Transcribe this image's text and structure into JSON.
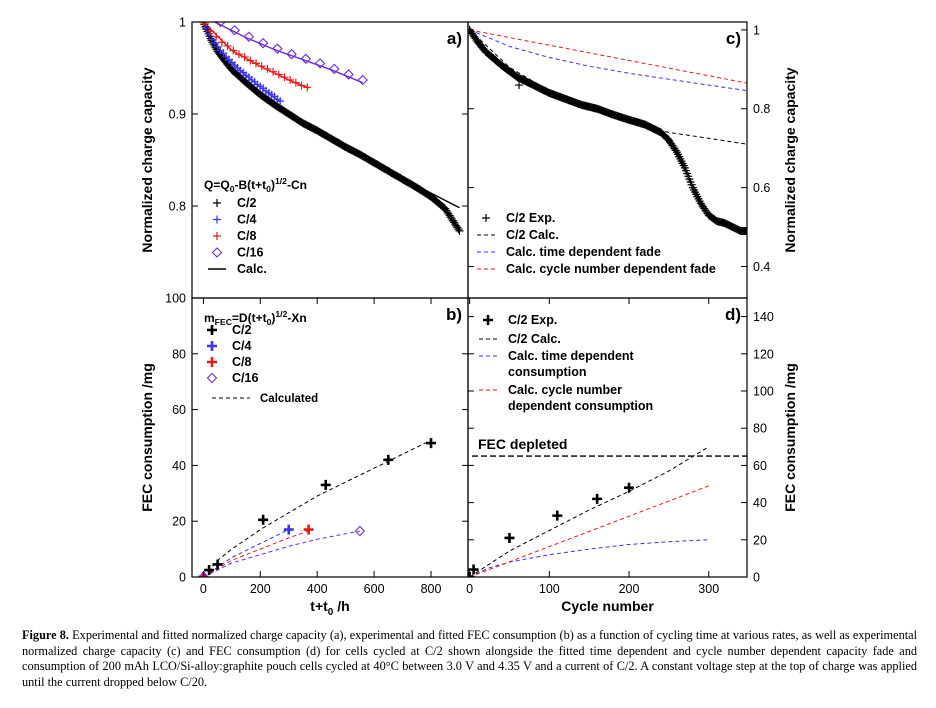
{
  "colors": {
    "black": "#000000",
    "blue": "#3a35e8",
    "red": "#e51a1a",
    "purple": "#6b2fd6"
  },
  "caption": {
    "label": "Figure 8.",
    "text": "Experimental and fitted normalized charge capacity (a), experimental and fitted FEC consumption (b) as a function of cycling time at various rates, as well as experimental normalized charge capacity (c) and FEC consumption (d) for cells cycled at C/2 shown alongside the fitted time dependent and cycle number dependent capacity fade and consumption of 200 mAh LCO/Si-alloy:graphite pouch cells cycled at 40°C between 3.0 V and 4.35 V and a current of C/2. A constant voltage step at the top of charge was applied until the current dropped below C/20."
  },
  "chart_data": [
    {
      "panel": "a)",
      "type": "scatter",
      "ylabel": "Normalized charge capacity",
      "xlim": [
        -40,
        930
      ],
      "ylim": [
        0.7,
        1.0
      ],
      "yticks": [
        0.8,
        0.9,
        1
      ],
      "ytick_labels": [
        "0.8",
        "0.9",
        "1"
      ],
      "equation": {
        "pre": "Q=Q",
        "s1": "0",
        "mid": "-B(t+t",
        "s2": "0",
        "mid2": ")",
        "sup": "1/2",
        "post": "-Cn"
      },
      "legend": [
        "C/2",
        "C/4",
        "C/8",
        "C/16",
        "Calc."
      ],
      "series": [
        {
          "name": "C/2",
          "color": "black",
          "marker": "plus",
          "dense": true,
          "x": [
            0,
            25,
            50,
            100,
            150,
            200,
            250,
            300,
            350,
            400,
            450,
            500,
            550,
            600,
            650,
            700,
            750,
            800,
            850,
            900
          ],
          "y": [
            1.0,
            0.982,
            0.968,
            0.948,
            0.934,
            0.921,
            0.91,
            0.9,
            0.89,
            0.882,
            0.873,
            0.864,
            0.856,
            0.847,
            0.838,
            0.829,
            0.82,
            0.81,
            0.797,
            0.773
          ]
        },
        {
          "name": "C/4",
          "color": "blue",
          "marker": "plus",
          "x": [
            0,
            10,
            20,
            30,
            40,
            50,
            60,
            70,
            80,
            90,
            100,
            110,
            120,
            130,
            140,
            150,
            160,
            170,
            180,
            190,
            200,
            210,
            220,
            230,
            240,
            250,
            260,
            270
          ],
          "y": [
            1.0,
            0.993,
            0.987,
            0.981,
            0.977,
            0.973,
            0.969,
            0.966,
            0.962,
            0.959,
            0.956,
            0.953,
            0.95,
            0.947,
            0.945,
            0.942,
            0.94,
            0.937,
            0.935,
            0.932,
            0.93,
            0.928,
            0.925,
            0.923,
            0.921,
            0.919,
            0.916,
            0.914
          ]
        },
        {
          "name": "C/8",
          "color": "red",
          "marker": "plus",
          "x": [
            5,
            25,
            45,
            65,
            85,
            105,
            125,
            145,
            165,
            185,
            205,
            225,
            245,
            265,
            285,
            305,
            325,
            345,
            365
          ],
          "y": [
            0.998,
            0.99,
            0.984,
            0.978,
            0.974,
            0.969,
            0.965,
            0.962,
            0.958,
            0.955,
            0.952,
            0.949,
            0.946,
            0.943,
            0.94,
            0.937,
            0.934,
            0.931,
            0.929
          ]
        },
        {
          "name": "C/16",
          "color": "purple",
          "marker": "diamond",
          "x": [
            60,
            110,
            160,
            210,
            260,
            310,
            360,
            410,
            460,
            510,
            560
          ],
          "y": [
            1.0,
            0.991,
            0.984,
            0.977,
            0.971,
            0.965,
            0.96,
            0.955,
            0.949,
            0.943,
            0.937
          ]
        }
      ],
      "fit_lines": [
        {
          "name": "Calc.",
          "color": "black",
          "dash": false,
          "x": [
            0,
            50,
            100,
            200,
            300,
            400,
            500,
            600,
            700,
            800,
            900
          ],
          "y": [
            1.0,
            0.968,
            0.949,
            0.92,
            0.898,
            0.88,
            0.862,
            0.846,
            0.83,
            0.814,
            0.798
          ]
        },
        {
          "name": "C/4 Calc.",
          "color": "blue",
          "dash": false,
          "x": [
            0,
            50,
            100,
            150,
            200,
            270
          ],
          "y": [
            1.0,
            0.972,
            0.956,
            0.942,
            0.929,
            0.913
          ]
        },
        {
          "name": "C/8 Calc.",
          "color": "red",
          "dash": false,
          "x": [
            0,
            100,
            200,
            300,
            370
          ],
          "y": [
            1.0,
            0.969,
            0.952,
            0.937,
            0.928
          ]
        },
        {
          "name": "C/16 Calc.",
          "color": "purple",
          "dash": false,
          "x": [
            40,
            150,
            250,
            350,
            450,
            560
          ],
          "y": [
            1.0,
            0.983,
            0.97,
            0.959,
            0.948,
            0.934
          ]
        }
      ]
    },
    {
      "panel": "b)",
      "type": "scatter",
      "xlabel": {
        "pre": "t+t",
        "sub": "0",
        "post": " /h"
      },
      "ylabel": "FEC consumption /mg",
      "xlim": [
        -40,
        930
      ],
      "ylim": [
        0,
        100
      ],
      "xticks": [
        0,
        200,
        400,
        600,
        800
      ],
      "xtick_labels": [
        "0",
        "200",
        "400",
        "600",
        "800"
      ],
      "yticks": [
        0,
        20,
        40,
        60,
        80,
        100
      ],
      "ytick_labels": [
        "0",
        "20",
        "40",
        "60",
        "80",
        "100"
      ],
      "equation": {
        "pre": "m",
        "s1": "FEC",
        "mid": "=D(t+t",
        "s2": "0",
        "mid2": ")",
        "sup": "1/2",
        "post": "-Xn"
      },
      "legend": [
        "C/2",
        "C/4",
        "C/8",
        "C/16",
        "Calculated"
      ],
      "series": [
        {
          "name": "C/2",
          "color": "black",
          "marker": "bigplus",
          "x": [
            0,
            20,
            50,
            210,
            430,
            650,
            800
          ],
          "y": [
            0,
            2.5,
            4.5,
            20.5,
            33,
            42,
            48
          ]
        },
        {
          "name": "C/4",
          "color": "blue",
          "marker": "bigplus",
          "x": [
            0,
            300
          ],
          "y": [
            0,
            17
          ]
        },
        {
          "name": "C/8",
          "color": "red",
          "marker": "bigplus",
          "x": [
            0,
            370
          ],
          "y": [
            0,
            17
          ]
        },
        {
          "name": "C/16",
          "color": "purple",
          "marker": "diamond",
          "x": [
            0,
            550
          ],
          "y": [
            0,
            16.5
          ]
        }
      ],
      "fit_lines": [
        {
          "name": "Calculated",
          "color": "black",
          "dash": true,
          "x": [
            0,
            50,
            100,
            200,
            300,
            400,
            500,
            600,
            700,
            800
          ],
          "y": [
            0,
            6,
            10,
            17,
            23,
            29,
            34,
            39,
            44,
            49
          ]
        },
        {
          "name": "C/4 Calculated",
          "color": "blue",
          "dash": true,
          "x": [
            0,
            100,
            200,
            300
          ],
          "y": [
            0,
            7,
            12,
            17
          ]
        },
        {
          "name": "C/8 Calculated",
          "color": "red",
          "dash": true,
          "x": [
            0,
            100,
            200,
            300,
            370
          ],
          "y": [
            0,
            6,
            10,
            14,
            16.5
          ]
        },
        {
          "name": "C/16 Calculated",
          "color": "purple",
          "dash": true,
          "x": [
            0,
            100,
            200,
            300,
            400,
            550
          ],
          "y": [
            0,
            5,
            8,
            11,
            13.5,
            16.5
          ]
        }
      ]
    },
    {
      "panel": "c)",
      "type": "line",
      "ylabel": "Normalized charge capacity",
      "xlim": [
        -2,
        348
      ],
      "ylim": [
        0.32,
        1.02
      ],
      "yticks": [
        0.4,
        0.6,
        0.8,
        1
      ],
      "ytick_labels": [
        "0.4",
        "0.6",
        "0.8",
        "1"
      ],
      "legend": [
        "C/2 Exp.",
        "C/2 Calc.",
        "Calc. time dependent fade",
        "Calc. cycle number dependent fade"
      ],
      "series": [
        {
          "name": "C/2 Exp.",
          "color": "black",
          "marker": "plus",
          "dense": true,
          "x": [
            0,
            10,
            20,
            40,
            60,
            80,
            100,
            120,
            140,
            160,
            180,
            200,
            220,
            240,
            250,
            260,
            270,
            280,
            290,
            300,
            310,
            320,
            330,
            340,
            348
          ],
          "y": [
            1.0,
            0.97,
            0.945,
            0.91,
            0.88,
            0.86,
            0.84,
            0.825,
            0.81,
            0.8,
            0.785,
            0.772,
            0.76,
            0.74,
            0.72,
            0.69,
            0.65,
            0.6,
            0.56,
            0.53,
            0.515,
            0.51,
            0.5,
            0.49,
            0.49
          ]
        },
        {
          "name": "C/2 Exp. outlier",
          "color": "black",
          "marker": "plus",
          "x": [
            62
          ],
          "y": [
            0.86
          ]
        }
      ],
      "fit_lines": [
        {
          "name": "C/2 Calc.",
          "color": "black",
          "dash": true,
          "x": [
            0,
            50,
            100,
            150,
            200,
            250,
            300,
            348
          ],
          "y": [
            1.0,
            0.905,
            0.845,
            0.8,
            0.765,
            0.74,
            0.725,
            0.71
          ]
        },
        {
          "name": "Calc. time dependent fade",
          "color": "blue",
          "dash": true,
          "x": [
            0,
            50,
            100,
            150,
            200,
            250,
            300,
            348
          ],
          "y": [
            1.0,
            0.958,
            0.93,
            0.908,
            0.89,
            0.875,
            0.86,
            0.846
          ]
        },
        {
          "name": "Calc. cycle number dependent fade",
          "color": "red",
          "dash": true,
          "x": [
            0,
            348
          ],
          "y": [
            1.0,
            0.865
          ]
        }
      ]
    },
    {
      "panel": "d)",
      "type": "line",
      "xlabel": "Cycle number",
      "ylabel": "FEC consumption /mg",
      "xlim": [
        -2,
        348
      ],
      "ylim": [
        0,
        150
      ],
      "xticks": [
        0,
        100,
        200,
        300
      ],
      "xtick_labels": [
        "0",
        "100",
        "200",
        "300"
      ],
      "yticks": [
        0,
        20,
        40,
        60,
        80,
        100,
        120,
        140
      ],
      "ytick_labels": [
        "0",
        "20",
        "40",
        "60",
        "80",
        "100",
        "120",
        "140"
      ],
      "annotation": "FEC depleted",
      "depleted_level": 65,
      "legend": [
        "C/2 Exp.",
        "C/2 Calc.",
        "Calc. time dependent consumption",
        "Calc. cycle number dependent consumption"
      ],
      "series": [
        {
          "name": "C/2 Exp.",
          "color": "black",
          "marker": "bigplus",
          "x": [
            0,
            5,
            50,
            110,
            160,
            200
          ],
          "y": [
            0,
            4,
            21,
            33,
            42,
            48
          ]
        }
      ],
      "fit_lines": [
        {
          "name": "C/2 Calc.",
          "color": "black",
          "dash": true,
          "x": [
            0,
            50,
            100,
            150,
            200,
            250,
            300
          ],
          "y": [
            0,
            14,
            25,
            36,
            46,
            57,
            70
          ]
        },
        {
          "name": "Calc. time dependent consumption",
          "color": "blue",
          "dash": true,
          "x": [
            0,
            25,
            50,
            100,
            150,
            200,
            250,
            300
          ],
          "y": [
            0,
            5,
            8,
            12,
            15,
            17.5,
            19,
            20
          ]
        },
        {
          "name": "Calc. cycle number dependent consumption",
          "color": "red",
          "dash": true,
          "x": [
            0,
            300
          ],
          "y": [
            0,
            49
          ]
        }
      ]
    }
  ]
}
